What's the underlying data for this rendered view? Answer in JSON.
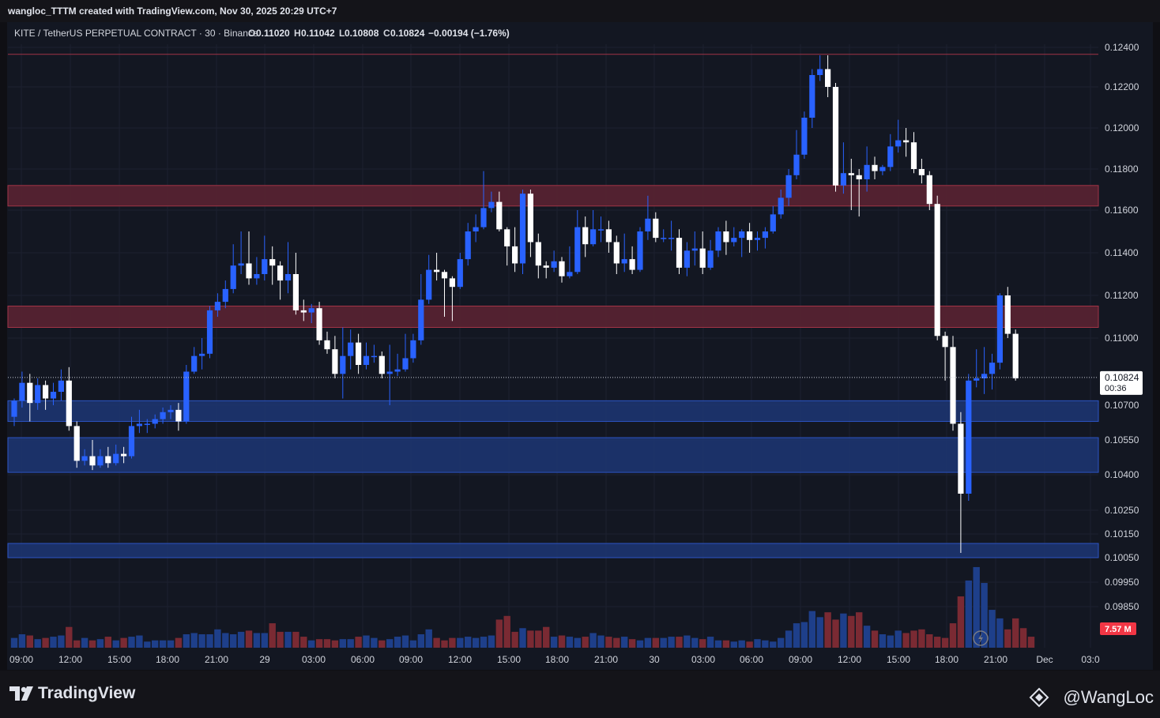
{
  "header": {
    "created_line": "wangloc_TTTM created with TradingView.com, Nov 30, 2025 20:29 UTC+7",
    "symbol": "KITE / TetherUS PERPETUAL CONTRACT · 30 · Binance",
    "o_label": "O",
    "o_value": "0.11020",
    "h_label": "H",
    "h_value": "0.11042",
    "l_label": "L",
    "l_value": "0.10808",
    "c_label": "C",
    "c_value": "0.10824",
    "change": "−0.00194 (−1.76%)"
  },
  "price_badge": {
    "value": "0.10824",
    "countdown": "00:36"
  },
  "volume_badge": "7.57 M",
  "footer": {
    "brand": "TradingView",
    "author": "@WangLoc"
  },
  "icons": {
    "brand": "tradingview-logo-icon",
    "author": "binance-square-icon",
    "replay": "lightning-icon"
  },
  "colors": {
    "background": "#131722",
    "up_candle": "#2962ff",
    "down_candle": "#ffffff",
    "volume_up": "#1e3f8a",
    "volume_down": "#7a2a33",
    "resistance_zone": "#5a2232",
    "support_zone": "#1d3470",
    "badge_bg": "#ffffff",
    "volume_badge_bg": "#f23645"
  },
  "chart_data": {
    "type": "candlestick",
    "timeframe": "30",
    "y_axis_ticks": [
      "0.12400",
      "0.12200",
      "0.12000",
      "0.11800",
      "0.11600",
      "0.11400",
      "0.11200",
      "0.11000",
      "0.10700",
      "0.10550",
      "0.10400",
      "0.10250",
      "0.10150",
      "0.10050",
      "0.09950",
      "0.09850"
    ],
    "x_axis_ticks": [
      "09:00",
      "12:00",
      "15:00",
      "18:00",
      "21:00",
      "29",
      "03:00",
      "06:00",
      "09:00",
      "12:00",
      "15:00",
      "18:00",
      "21:00",
      "30",
      "03:00",
      "06:00",
      "09:00",
      "12:00",
      "15:00",
      "18:00",
      "21:00",
      "Dec",
      "03:0"
    ],
    "last_price": 0.10824,
    "zones": [
      {
        "type": "resistance",
        "from": 0.1162,
        "to": 0.1172
      },
      {
        "type": "resistance",
        "from": 0.1105,
        "to": 0.1115
      },
      {
        "type": "support",
        "from": 0.1063,
        "to": 0.1072
      },
      {
        "type": "support",
        "from": 0.1041,
        "to": 0.1056
      },
      {
        "type": "support",
        "from": 0.1005,
        "to": 0.1011
      }
    ],
    "resistance_line": 0.12365,
    "candles": [
      [
        0.1065,
        0.1072,
        0.1061,
        0.1073
      ],
      [
        0.1072,
        0.108,
        0.1069,
        0.1085
      ],
      [
        0.108,
        0.1071,
        0.1063,
        0.1084
      ],
      [
        0.1071,
        0.1079,
        0.1068,
        0.1082
      ],
      [
        0.1079,
        0.1073,
        0.1068,
        0.1081
      ],
      [
        0.1073,
        0.1076,
        0.107,
        0.108
      ],
      [
        0.1076,
        0.1081,
        0.1072,
        0.1086
      ],
      [
        0.1081,
        0.1061,
        0.1059,
        0.1087
      ],
      [
        0.1061,
        0.1046,
        0.1043,
        0.1063
      ],
      [
        0.1046,
        0.1048,
        0.1044,
        0.1051
      ],
      [
        0.1048,
        0.1044,
        0.1042,
        0.1055
      ],
      [
        0.1044,
        0.1048,
        0.1043,
        0.1051
      ],
      [
        0.1048,
        0.1045,
        0.1043,
        0.1052
      ],
      [
        0.1045,
        0.1049,
        0.1044,
        0.1053
      ],
      [
        0.1049,
        0.1048,
        0.1045,
        0.1052
      ],
      [
        0.1048,
        0.1061,
        0.1047,
        0.1065
      ],
      [
        0.1061,
        0.1062,
        0.1058,
        0.1068
      ],
      [
        0.1062,
        0.1062,
        0.1058,
        0.1064
      ],
      [
        0.1062,
        0.1064,
        0.106,
        0.1066
      ],
      [
        0.1064,
        0.1067,
        0.1062,
        0.1069
      ],
      [
        0.1067,
        0.1068,
        0.1064,
        0.107
      ],
      [
        0.1068,
        0.1063,
        0.1059,
        0.1071
      ],
      [
        0.1063,
        0.1085,
        0.1062,
        0.1088
      ],
      [
        0.1085,
        0.1092,
        0.1084,
        0.1096
      ],
      [
        0.1092,
        0.1093,
        0.1086,
        0.11
      ],
      [
        0.1093,
        0.1113,
        0.1091,
        0.1115
      ],
      [
        0.1113,
        0.1117,
        0.111,
        0.1121
      ],
      [
        0.1117,
        0.1123,
        0.1114,
        0.1127
      ],
      [
        0.1123,
        0.1134,
        0.1121,
        0.1144
      ],
      [
        0.1134,
        0.1135,
        0.113,
        0.115
      ],
      [
        0.1135,
        0.1128,
        0.1125,
        0.115
      ],
      [
        0.1128,
        0.113,
        0.1125,
        0.1138
      ],
      [
        0.113,
        0.1137,
        0.1127,
        0.1148
      ],
      [
        0.1137,
        0.1134,
        0.1125,
        0.1143
      ],
      [
        0.1134,
        0.1127,
        0.1118,
        0.1136
      ],
      [
        0.1127,
        0.113,
        0.1121,
        0.1145
      ],
      [
        0.113,
        0.1113,
        0.1111,
        0.114
      ],
      [
        0.1113,
        0.1112,
        0.1108,
        0.1118
      ],
      [
        0.1112,
        0.1114,
        0.1107,
        0.1116
      ],
      [
        0.1114,
        0.1099,
        0.1097,
        0.1117
      ],
      [
        0.1099,
        0.1095,
        0.1093,
        0.1103
      ],
      [
        0.1095,
        0.1084,
        0.1082,
        0.1101
      ],
      [
        0.1084,
        0.1092,
        0.1073,
        0.1105
      ],
      [
        0.1092,
        0.1098,
        0.1086,
        0.1104
      ],
      [
        0.1098,
        0.1088,
        0.1084,
        0.1102
      ],
      [
        0.1088,
        0.1092,
        0.1086,
        0.1098
      ],
      [
        0.1092,
        0.1092,
        0.1089,
        0.1097
      ],
      [
        0.1092,
        0.1084,
        0.1082,
        0.1094
      ],
      [
        0.1084,
        0.1085,
        0.107,
        0.1097
      ],
      [
        0.1085,
        0.1086,
        0.1083,
        0.1093
      ],
      [
        0.1086,
        0.1091,
        0.1085,
        0.1102
      ],
      [
        0.1091,
        0.1099,
        0.1089,
        0.1102
      ],
      [
        0.1099,
        0.1118,
        0.1097,
        0.113
      ],
      [
        0.1118,
        0.1132,
        0.1116,
        0.1139
      ],
      [
        0.1132,
        0.1131,
        0.1127,
        0.114
      ],
      [
        0.1131,
        0.1128,
        0.111,
        0.1132
      ],
      [
        0.1128,
        0.1124,
        0.1108,
        0.1129
      ],
      [
        0.1124,
        0.1137,
        0.1123,
        0.114
      ],
      [
        0.1137,
        0.115,
        0.1134,
        0.1154
      ],
      [
        0.115,
        0.1152,
        0.1145,
        0.1158
      ],
      [
        0.1152,
        0.1161,
        0.1151,
        0.1179
      ],
      [
        0.1161,
        0.1164,
        0.1159,
        0.1169
      ],
      [
        0.1164,
        0.1151,
        0.115,
        0.1169
      ],
      [
        0.1151,
        0.1143,
        0.1134,
        0.1152
      ],
      [
        0.1143,
        0.1135,
        0.1131,
        0.1152
      ],
      [
        0.1135,
        0.1168,
        0.113,
        0.117
      ],
      [
        0.1168,
        0.1145,
        0.1138,
        0.117
      ],
      [
        0.1145,
        0.1134,
        0.1128,
        0.1149
      ],
      [
        0.1134,
        0.1133,
        0.1128,
        0.1136
      ],
      [
        0.1133,
        0.1136,
        0.1131,
        0.1141
      ],
      [
        0.1136,
        0.1129,
        0.1126,
        0.1138
      ],
      [
        0.1129,
        0.1131,
        0.1128,
        0.1143
      ],
      [
        0.1131,
        0.1152,
        0.113,
        0.116
      ],
      [
        0.1152,
        0.1144,
        0.1138,
        0.1157
      ],
      [
        0.1144,
        0.1151,
        0.1143,
        0.116
      ],
      [
        0.1151,
        0.1151,
        0.1145,
        0.1157
      ],
      [
        0.1151,
        0.1145,
        0.114,
        0.1155
      ],
      [
        0.1145,
        0.1135,
        0.113,
        0.1148
      ],
      [
        0.1135,
        0.1137,
        0.1131,
        0.1149
      ],
      [
        0.1137,
        0.1132,
        0.113,
        0.1143
      ],
      [
        0.1132,
        0.115,
        0.1131,
        0.1152
      ],
      [
        0.115,
        0.1156,
        0.1146,
        0.1167
      ],
      [
        0.1156,
        0.1147,
        0.1145,
        0.1159
      ],
      [
        0.1147,
        0.1147,
        0.1145,
        0.1151
      ],
      [
        0.1147,
        0.1147,
        0.1141,
        0.1155
      ],
      [
        0.1147,
        0.1133,
        0.113,
        0.1151
      ],
      [
        0.1133,
        0.1141,
        0.1129,
        0.1145
      ],
      [
        0.1141,
        0.1142,
        0.1134,
        0.115
      ],
      [
        0.1142,
        0.1133,
        0.113,
        0.115
      ],
      [
        0.1133,
        0.1141,
        0.1132,
        0.1146
      ],
      [
        0.1141,
        0.115,
        0.1138,
        0.1152
      ],
      [
        0.115,
        0.1145,
        0.1139,
        0.1155
      ],
      [
        0.1145,
        0.1147,
        0.1143,
        0.1152
      ],
      [
        0.1147,
        0.115,
        0.1138,
        0.1151
      ],
      [
        0.115,
        0.1146,
        0.114,
        0.1154
      ],
      [
        0.1146,
        0.1147,
        0.1141,
        0.115
      ],
      [
        0.1147,
        0.115,
        0.1142,
        0.1152
      ],
      [
        0.115,
        0.1158,
        0.1149,
        0.1162
      ],
      [
        0.1158,
        0.1166,
        0.1156,
        0.117
      ],
      [
        0.1166,
        0.1177,
        0.1162,
        0.118
      ],
      [
        0.1177,
        0.1187,
        0.1175,
        0.1199
      ],
      [
        0.1187,
        0.1205,
        0.1185,
        0.1208
      ],
      [
        0.1205,
        0.1226,
        0.12,
        0.1229
      ],
      [
        0.1226,
        0.1229,
        0.1223,
        0.1236
      ],
      [
        0.1229,
        0.122,
        0.1215,
        0.1236
      ],
      [
        0.122,
        0.1172,
        0.1169,
        0.1222
      ],
      [
        0.1172,
        0.1178,
        0.1168,
        0.1193
      ],
      [
        0.1178,
        0.1177,
        0.116,
        0.1185
      ],
      [
        0.1177,
        0.1175,
        0.1157,
        0.118
      ],
      [
        0.1175,
        0.1182,
        0.1169,
        0.1191
      ],
      [
        0.1182,
        0.1179,
        0.1175,
        0.1186
      ],
      [
        0.1179,
        0.1181,
        0.1177,
        0.1182
      ],
      [
        0.1181,
        0.1191,
        0.1179,
        0.1197
      ],
      [
        0.1191,
        0.1194,
        0.1188,
        0.1204
      ],
      [
        0.1194,
        0.1193,
        0.1186,
        0.12
      ],
      [
        0.1193,
        0.118,
        0.1178,
        0.1198
      ],
      [
        0.118,
        0.1177,
        0.1173,
        0.1185
      ],
      [
        0.1177,
        0.1163,
        0.116,
        0.1179
      ],
      [
        0.1163,
        0.1101,
        0.1099,
        0.1167
      ],
      [
        0.1101,
        0.1096,
        0.1081,
        0.1103
      ],
      [
        0.1096,
        0.1062,
        0.1059,
        0.1101
      ],
      [
        0.1062,
        0.1032,
        0.1007,
        0.1067
      ],
      [
        0.1032,
        0.1081,
        0.1029,
        0.1084
      ],
      [
        0.1081,
        0.1082,
        0.1078,
        0.1095
      ],
      [
        0.1082,
        0.1084,
        0.1075,
        0.1096
      ],
      [
        0.1084,
        0.1089,
        0.1077,
        0.1093
      ],
      [
        0.1089,
        0.112,
        0.1086,
        0.1121
      ],
      [
        0.112,
        0.1102,
        0.11,
        0.1124
      ],
      [
        0.1102,
        0.1082,
        0.1081,
        0.1104
      ]
    ],
    "volume_mln": [
      0.8,
      1.1,
      1.0,
      0.7,
      0.8,
      0.9,
      1.0,
      1.7,
      0.6,
      0.8,
      0.6,
      0.7,
      0.9,
      0.6,
      0.8,
      0.9,
      1.0,
      0.5,
      0.6,
      0.6,
      0.6,
      0.8,
      1.1,
      1.2,
      1.1,
      1.1,
      1.5,
      1.2,
      1.1,
      1.3,
      1.4,
      1.2,
      1.2,
      2.0,
      1.3,
      1.3,
      1.3,
      0.9,
      0.6,
      0.7,
      0.7,
      0.6,
      0.7,
      0.7,
      0.9,
      1.0,
      0.8,
      0.6,
      0.7,
      0.9,
      1.0,
      0.6,
      1.1,
      1.5,
      0.8,
      0.6,
      0.8,
      0.8,
      0.9,
      0.8,
      0.9,
      1.0,
      2.3,
      2.6,
      1.3,
      1.6,
      1.4,
      1.4,
      1.7,
      0.9,
      1.0,
      0.9,
      0.8,
      0.9,
      1.2,
      1.0,
      0.9,
      0.8,
      0.9,
      0.7,
      0.6,
      0.8,
      0.8,
      0.8,
      0.9,
      0.9,
      1.0,
      0.8,
      0.7,
      0.9,
      0.6,
      0.6,
      0.5,
      0.6,
      0.5,
      0.7,
      0.6,
      0.5,
      0.8,
      1.4,
      2.0,
      2.1,
      3.0,
      2.5,
      2.9,
      2.3,
      2.8,
      2.6,
      2.9,
      1.8,
      1.4,
      1.1,
      1.0,
      1.4,
      1.2,
      1.4,
      1.5,
      1.1,
      0.9,
      0.8,
      2.0,
      4.2,
      5.5,
      6.6,
      5.3,
      3.1,
      2.4,
      1.5,
      2.4,
      1.6,
      0.9
    ]
  }
}
